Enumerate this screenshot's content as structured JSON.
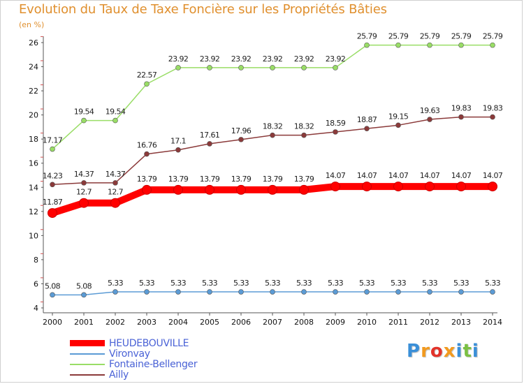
{
  "header": {
    "title": "Evolution du Taux de Taxe Foncière sur les Propriétés Bâties",
    "unit": "(en %)"
  },
  "chart_data": {
    "type": "line",
    "title": "Evolution du Taux de Taxe Foncière sur les Propriétés Bâties",
    "ylabel": "(en %)",
    "xlabel": "",
    "categories": [
      "2000",
      "2001",
      "2002",
      "2003",
      "2004",
      "2005",
      "2006",
      "2007",
      "2008",
      "2009",
      "2010",
      "2011",
      "2012",
      "2013",
      "2014"
    ],
    "ylim": [
      4,
      26
    ],
    "yticks": [
      4,
      6,
      8,
      10,
      12,
      14,
      16,
      18,
      20,
      22,
      24,
      26
    ],
    "grid": false,
    "legend_position": "bottom-left",
    "series": [
      {
        "name": "HEUDEBOUVILLE",
        "color": "#ff0000",
        "values": [
          11.87,
          12.7,
          12.7,
          13.79,
          13.79,
          13.79,
          13.79,
          13.79,
          13.79,
          14.07,
          14.07,
          14.07,
          14.07,
          14.07,
          14.07
        ],
        "labels": [
          "11.87",
          "12.7",
          "12.7",
          "13.79",
          "13.79",
          "13.79",
          "13.79",
          "13.79",
          "13.79",
          "14.07",
          "14.07",
          "14.07",
          "14.07",
          "14.07",
          "14.07"
        ]
      },
      {
        "name": "Vironvay",
        "color": "#5b9bd5",
        "values": [
          5.08,
          5.08,
          5.33,
          5.33,
          5.33,
          5.33,
          5.33,
          5.33,
          5.33,
          5.33,
          5.33,
          5.33,
          5.33,
          5.33,
          5.33
        ],
        "labels": [
          "5.08",
          "5.08",
          "5.33",
          "5.33",
          "5.33",
          "5.33",
          "5.33",
          "5.33",
          "5.33",
          "5.33",
          "5.33",
          "5.33",
          "5.33",
          "5.33",
          "5.33"
        ]
      },
      {
        "name": "Fontaine-Bellenger",
        "color": "#99dd66",
        "values": [
          17.17,
          19.54,
          19.54,
          22.57,
          23.92,
          23.92,
          23.92,
          23.92,
          23.92,
          23.92,
          25.79,
          25.79,
          25.79,
          25.79,
          25.79
        ],
        "labels": [
          "17.17",
          "19.54",
          "19.54",
          "22.57",
          "23.92",
          "23.92",
          "23.92",
          "23.92",
          "23.92",
          "23.92",
          "25.79",
          "25.79",
          "25.79",
          "25.79",
          "25.79"
        ]
      },
      {
        "name": "Ailly",
        "color": "#8b3a3a",
        "values": [
          14.23,
          14.37,
          14.37,
          16.76,
          17.1,
          17.61,
          17.96,
          18.32,
          18.32,
          18.59,
          18.87,
          19.15,
          19.63,
          19.83,
          19.83
        ],
        "labels": [
          "14.23",
          "14.37",
          "14.37",
          "16.76",
          "17.1",
          "17.61",
          "17.96",
          "18.32",
          "18.32",
          "18.59",
          "18.87",
          "19.15",
          "19.63",
          "19.83",
          "19.83"
        ]
      }
    ]
  },
  "legend": {
    "items": [
      {
        "label": "HEUDEBOUVILLE",
        "color": "#ff0000"
      },
      {
        "label": "Vironvay",
        "color": "#5b9bd5"
      },
      {
        "label": "Fontaine-Bellenger",
        "color": "#99dd66"
      },
      {
        "label": "Ailly",
        "color": "#8b3a3a"
      }
    ]
  },
  "logo": {
    "text": "Proxiti",
    "letters": [
      "P",
      "r",
      "o",
      "x",
      "i",
      "t",
      "i"
    ],
    "colors": [
      "#3a8fd8",
      "#f29a1f",
      "#e2332a",
      "#f29a1f",
      "#3a8fd8",
      "#7bc043",
      "#3a8fd8"
    ]
  }
}
